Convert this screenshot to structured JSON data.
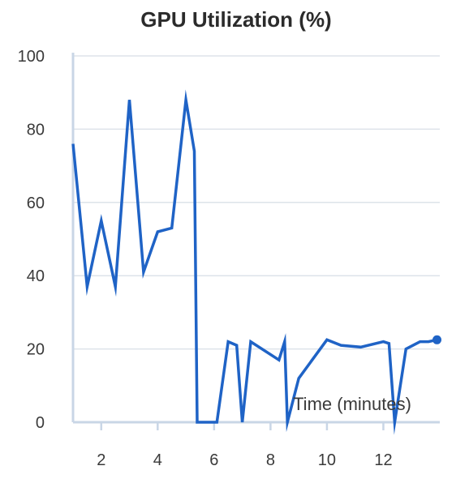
{
  "chart_data": {
    "type": "line",
    "title": "GPU Utilization (%)",
    "xlabel": "Time (minutes)",
    "ylabel": "",
    "xlim": [
      1,
      14
    ],
    "ylim": [
      0,
      100
    ],
    "x_ticks": [
      2,
      4,
      6,
      8,
      10,
      12
    ],
    "y_ticks": [
      0,
      20,
      40,
      60,
      80,
      100
    ],
    "grid": true,
    "legend": "none",
    "colors": {
      "line": "#1f63c6",
      "grid": "#dde3ea",
      "axis": "#c9d6e6",
      "text": "#3a3a3a"
    },
    "series": [
      {
        "values": [
          [
            1.0,
            76
          ],
          [
            1.5,
            37
          ],
          [
            2.0,
            55
          ],
          [
            2.5,
            37
          ],
          [
            3.0,
            88
          ],
          [
            3.5,
            41
          ],
          [
            4.0,
            52
          ],
          [
            4.5,
            53
          ],
          [
            5.0,
            88
          ],
          [
            5.3,
            74
          ],
          [
            5.4,
            0
          ],
          [
            6.1,
            0
          ],
          [
            6.5,
            22
          ],
          [
            6.8,
            21
          ],
          [
            7.0,
            0
          ],
          [
            7.3,
            22
          ],
          [
            8.3,
            17
          ],
          [
            8.5,
            22
          ],
          [
            8.6,
            0
          ],
          [
            9.0,
            12
          ],
          [
            10.0,
            22.5
          ],
          [
            10.5,
            21
          ],
          [
            11.2,
            20.5
          ],
          [
            12.0,
            22
          ],
          [
            12.2,
            21.5
          ],
          [
            12.4,
            0
          ],
          [
            12.8,
            20
          ],
          [
            13.3,
            22
          ],
          [
            13.6,
            22
          ],
          [
            13.9,
            22.5
          ]
        ]
      }
    ]
  }
}
